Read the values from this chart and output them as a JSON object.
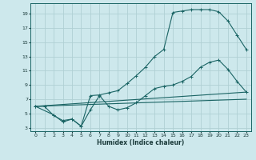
{
  "xlabel": "Humidex (Indice chaleur)",
  "bg_color": "#cde8ec",
  "grid_color": "#b0d0d4",
  "line_color": "#1a6464",
  "xlim": [
    -0.5,
    23.5
  ],
  "ylim": [
    2.5,
    20.5
  ],
  "xticks": [
    0,
    1,
    2,
    3,
    4,
    5,
    6,
    7,
    8,
    9,
    10,
    11,
    12,
    13,
    14,
    15,
    16,
    17,
    18,
    19,
    20,
    21,
    22,
    23
  ],
  "yticks": [
    3,
    5,
    7,
    9,
    11,
    13,
    15,
    17,
    19
  ],
  "s1x": [
    0,
    1,
    2,
    3,
    4,
    5,
    6,
    7,
    8,
    9,
    10,
    11,
    12,
    13,
    14,
    15,
    16,
    17,
    18,
    19,
    20,
    21,
    22,
    23
  ],
  "s1y": [
    6,
    6,
    4.7,
    4.0,
    4.2,
    3.2,
    7.5,
    7.6,
    7.9,
    8.2,
    9.2,
    10.3,
    11.5,
    13.0,
    14.0,
    19.2,
    19.4,
    19.6,
    19.6,
    19.6,
    19.3,
    18.0,
    16.0,
    14.0
  ],
  "s2x": [
    0,
    2,
    3,
    4,
    5,
    6,
    7,
    8,
    9,
    10,
    11,
    12,
    13,
    14,
    15,
    16,
    17,
    18,
    19,
    20,
    21,
    22,
    23
  ],
  "s2y": [
    6.0,
    4.8,
    3.8,
    4.2,
    3.2,
    5.5,
    7.5,
    6.0,
    5.5,
    5.8,
    6.5,
    7.5,
    8.5,
    8.8,
    9.0,
    9.5,
    10.2,
    11.5,
    12.2,
    12.5,
    11.2,
    9.5,
    8.0
  ],
  "s3x": [
    0,
    23
  ],
  "s3y": [
    6.0,
    8.0
  ],
  "s4x": [
    0,
    23
  ],
  "s4y": [
    6.0,
    7.0
  ]
}
